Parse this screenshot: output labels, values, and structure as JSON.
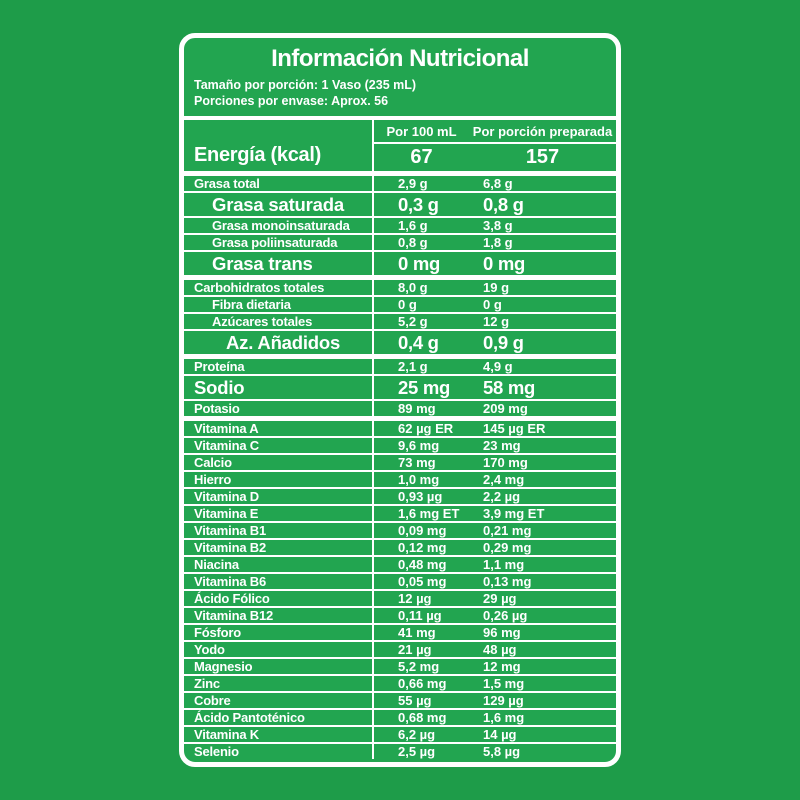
{
  "page": {
    "background_color": "#1e9c49"
  },
  "label": {
    "background_color": "#22a550",
    "border_color": "#ffffff",
    "text_color": "#ffffff",
    "title": "Información Nutricional",
    "serving_size": "Tamaño por porción: 1 Vaso (235 mL)",
    "servings_per_container": "Porciones por envase: Aprox. 56",
    "columns": [
      "Por 100 mL",
      "Por porción preparada"
    ],
    "energy": {
      "name": "Energía (kcal)",
      "per_100ml": "67",
      "per_portion": "157"
    },
    "rows": [
      {
        "name": "Grasa total",
        "per_100ml": "2,9 g",
        "per_portion": "6,8 g",
        "style": "normal",
        "indent": 0,
        "section_start": true
      },
      {
        "name": "Grasa saturada",
        "per_100ml": "0,3 g",
        "per_portion": "0,8 g",
        "style": "bold",
        "indent": 1,
        "section_start": false
      },
      {
        "name": "Grasa monoinsaturada",
        "per_100ml": "1,6 g",
        "per_portion": "3,8 g",
        "style": "normal",
        "indent": 1,
        "section_start": false
      },
      {
        "name": "Grasa poliinsaturada",
        "per_100ml": "0,8 g",
        "per_portion": "1,8 g",
        "style": "normal",
        "indent": 1,
        "section_start": false
      },
      {
        "name": "Grasa trans",
        "per_100ml": "0 mg",
        "per_portion": "0 mg",
        "style": "bold",
        "indent": 1,
        "section_start": false
      },
      {
        "name": "Carbohidratos totales",
        "per_100ml": "8,0 g",
        "per_portion": "19 g",
        "style": "normal",
        "indent": 0,
        "section_start": true
      },
      {
        "name": "Fibra dietaria",
        "per_100ml": "0 g",
        "per_portion": "0 g",
        "style": "normal",
        "indent": 1,
        "section_start": false
      },
      {
        "name": "Azúcares totales",
        "per_100ml": "5,2 g",
        "per_portion": "12 g",
        "style": "normal",
        "indent": 1,
        "section_start": false
      },
      {
        "name": "Az. Añadidos",
        "per_100ml": "0,4 g",
        "per_portion": "0,9 g",
        "style": "bold",
        "indent": 2,
        "section_start": false
      },
      {
        "name": "Proteína",
        "per_100ml": "2,1 g",
        "per_portion": "4,9 g",
        "style": "normal",
        "indent": 0,
        "section_start": true
      },
      {
        "name": "Sodio",
        "per_100ml": "25 mg",
        "per_portion": "58 mg",
        "style": "bold",
        "indent": 0,
        "section_start": false
      },
      {
        "name": "Potasio",
        "per_100ml": "89 mg",
        "per_portion": "209 mg",
        "style": "normal",
        "indent": 0,
        "section_start": false
      },
      {
        "name": "Vitamina A",
        "per_100ml": "62 µg ER",
        "per_portion": "145 µg ER",
        "style": "normal",
        "indent": 0,
        "section_start": true
      },
      {
        "name": "Vitamina C",
        "per_100ml": "9,6 mg",
        "per_portion": "23 mg",
        "style": "normal",
        "indent": 0,
        "section_start": false
      },
      {
        "name": "Calcio",
        "per_100ml": "73 mg",
        "per_portion": "170 mg",
        "style": "normal",
        "indent": 0,
        "section_start": false
      },
      {
        "name": "Hierro",
        "per_100ml": "1,0 mg",
        "per_portion": "2,4 mg",
        "style": "normal",
        "indent": 0,
        "section_start": false
      },
      {
        "name": "Vitamina D",
        "per_100ml": "0,93 µg",
        "per_portion": "2,2 µg",
        "style": "normal",
        "indent": 0,
        "section_start": false
      },
      {
        "name": "Vitamina E",
        "per_100ml": "1,6 mg ET",
        "per_portion": "3,9 mg ET",
        "style": "normal",
        "indent": 0,
        "section_start": false
      },
      {
        "name": "Vitamina B1",
        "per_100ml": "0,09 mg",
        "per_portion": "0,21 mg",
        "style": "normal",
        "indent": 0,
        "section_start": false
      },
      {
        "name": "Vitamina B2",
        "per_100ml": "0,12 mg",
        "per_portion": "0,29 mg",
        "style": "normal",
        "indent": 0,
        "section_start": false
      },
      {
        "name": "Niacina",
        "per_100ml": "0,48 mg",
        "per_portion": "1,1 mg",
        "style": "normal",
        "indent": 0,
        "section_start": false
      },
      {
        "name": "Vitamina B6",
        "per_100ml": "0,05 mg",
        "per_portion": "0,13 mg",
        "style": "normal",
        "indent": 0,
        "section_start": false
      },
      {
        "name": "Ácido Fólico",
        "per_100ml": "12 µg",
        "per_portion": "29 µg",
        "style": "normal",
        "indent": 0,
        "section_start": false
      },
      {
        "name": "Vitamina B12",
        "per_100ml": "0,11 µg",
        "per_portion": "0,26 µg",
        "style": "normal",
        "indent": 0,
        "section_start": false
      },
      {
        "name": "Fósforo",
        "per_100ml": "41 mg",
        "per_portion": "96 mg",
        "style": "normal",
        "indent": 0,
        "section_start": false
      },
      {
        "name": "Yodo",
        "per_100ml": "21 µg",
        "per_portion": "48 µg",
        "style": "normal",
        "indent": 0,
        "section_start": false
      },
      {
        "name": "Magnesio",
        "per_100ml": "5,2 mg",
        "per_portion": "12 mg",
        "style": "normal",
        "indent": 0,
        "section_start": false
      },
      {
        "name": "Zinc",
        "per_100ml": "0,66 mg",
        "per_portion": "1,5 mg",
        "style": "normal",
        "indent": 0,
        "section_start": false
      },
      {
        "name": "Cobre",
        "per_100ml": "55 µg",
        "per_portion": "129 µg",
        "style": "normal",
        "indent": 0,
        "section_start": false
      },
      {
        "name": "Ácido Pantoténico",
        "per_100ml": "0,68 mg",
        "per_portion": "1,6 mg",
        "style": "normal",
        "indent": 0,
        "section_start": false
      },
      {
        "name": "Vitamina K",
        "per_100ml": "6,2 µg",
        "per_portion": "14 µg",
        "style": "normal",
        "indent": 0,
        "section_start": false
      },
      {
        "name": "Selenio",
        "per_100ml": "2,5 µg",
        "per_portion": "5,8 µg",
        "style": "normal",
        "indent": 0,
        "section_start": false
      }
    ]
  }
}
